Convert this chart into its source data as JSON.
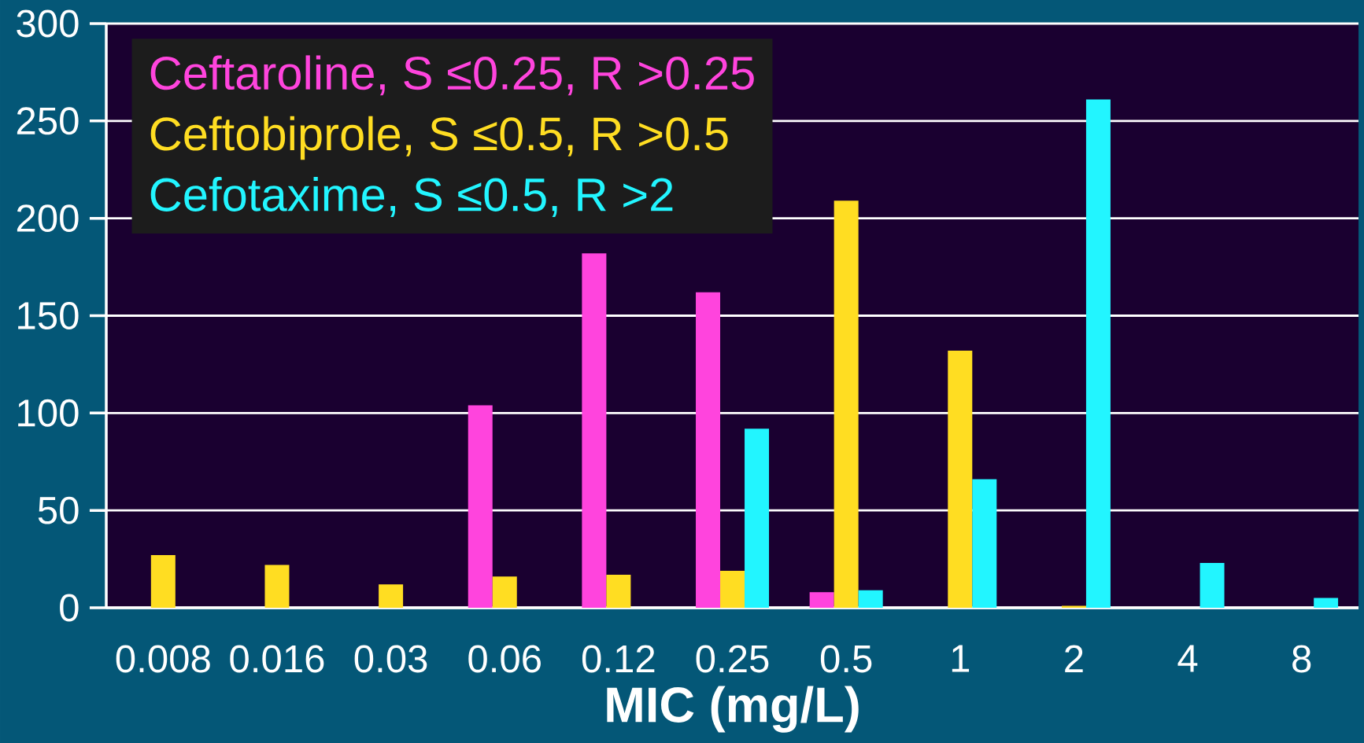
{
  "chart_data": {
    "type": "bar",
    "xlabel": "MIC (mg/L)",
    "categories": [
      "0.008",
      "0.016",
      "0.03",
      "0.06",
      "0.12",
      "0.25",
      "0.5",
      "1",
      "2",
      "4",
      "8"
    ],
    "series": [
      {
        "name": "Ceftaroline, S ≤0.25, R >0.25",
        "color": "#ff44dd",
        "values": [
          0,
          0,
          0,
          104,
          182,
          162,
          8,
          0,
          0,
          0,
          0
        ]
      },
      {
        "name": "Ceftobiprole, S ≤0.5, R >0.5",
        "color": "#ffdd22",
        "values": [
          27,
          22,
          12,
          16,
          17,
          19,
          209,
          132,
          1,
          0,
          0
        ]
      },
      {
        "name": "Cefotaxime, S ≤0.5, R >2",
        "color": "#22f5ff",
        "values": [
          0,
          0,
          0,
          0,
          0,
          92,
          9,
          66,
          261,
          23,
          5
        ]
      }
    ],
    "ylim": [
      0,
      300
    ],
    "yticks": [
      0,
      50,
      100,
      150,
      200,
      250,
      300
    ],
    "grid": "y",
    "legend": "top left"
  }
}
